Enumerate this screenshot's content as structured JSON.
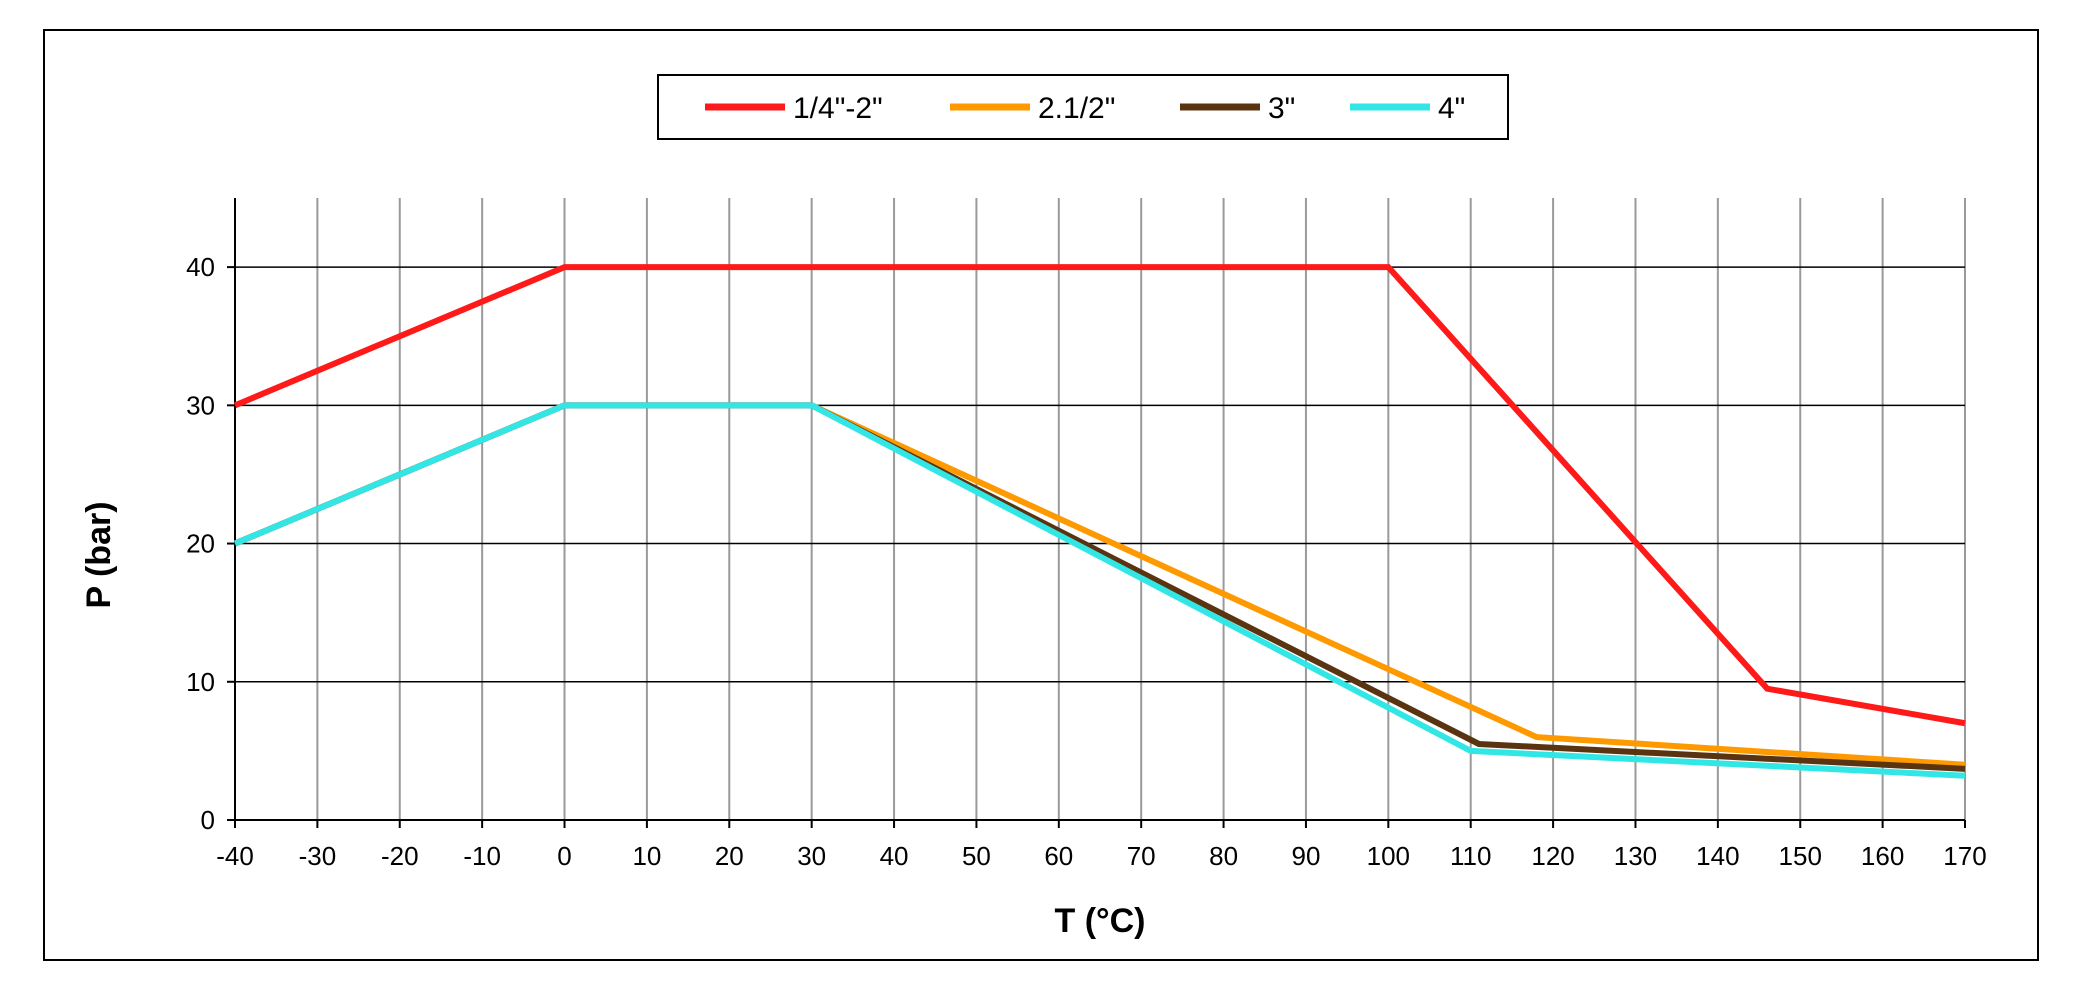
{
  "chart_data": {
    "type": "line",
    "xlabel": "T (°C)",
    "ylabel": "P (bar)",
    "xlim": [
      -40,
      170
    ],
    "ylim": [
      0,
      45
    ],
    "x_ticks": [
      -40,
      -30,
      -20,
      -10,
      0,
      10,
      20,
      30,
      40,
      50,
      60,
      70,
      80,
      90,
      100,
      110,
      120,
      130,
      140,
      150,
      160,
      170
    ],
    "y_ticks": [
      0,
      10,
      20,
      30,
      40
    ],
    "grid": true,
    "legend_position": "top-center",
    "series": [
      {
        "name": "1/4\"-2\"",
        "color": "#ff1a1a",
        "points": [
          [
            -40,
            30
          ],
          [
            0,
            40
          ],
          [
            100,
            40
          ],
          [
            146,
            9.5
          ],
          [
            170,
            7
          ]
        ]
      },
      {
        "name": "2.1/2\"",
        "color": "#ff9900",
        "points": [
          [
            -40,
            20
          ],
          [
            0,
            30
          ],
          [
            30,
            30
          ],
          [
            118,
            6
          ],
          [
            170,
            4
          ]
        ]
      },
      {
        "name": "3\"",
        "color": "#5a3310",
        "points": [
          [
            -40,
            20
          ],
          [
            0,
            30
          ],
          [
            30,
            30
          ],
          [
            111,
            5.5
          ],
          [
            170,
            3.7
          ]
        ]
      },
      {
        "name": "4\"",
        "color": "#33e6e6",
        "points": [
          [
            -40,
            20
          ],
          [
            0,
            30
          ],
          [
            30,
            30
          ],
          [
            110,
            5
          ],
          [
            170,
            3.2
          ]
        ]
      }
    ]
  }
}
